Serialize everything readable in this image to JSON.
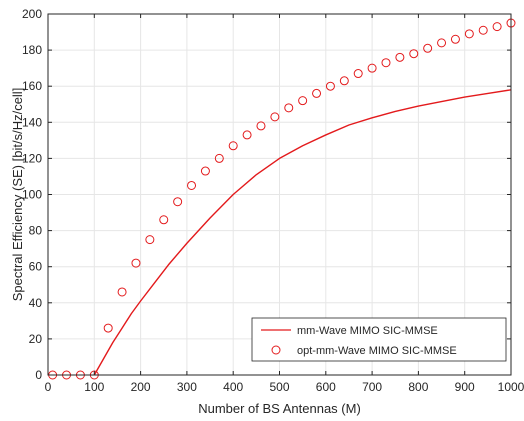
{
  "chart_data": {
    "type": "line",
    "xlabel": "Number of BS Antennas (M)",
    "ylabel": "Spectral Efficiency (SE) [bit/s/Hz/cell]",
    "xlim": [
      0,
      1000
    ],
    "ylim": [
      0,
      200
    ],
    "xticks": [
      0,
      100,
      200,
      300,
      400,
      500,
      600,
      700,
      800,
      900,
      1000
    ],
    "yticks": [
      0,
      20,
      40,
      60,
      80,
      100,
      120,
      140,
      160,
      180,
      200
    ],
    "grid": true,
    "legend_position": "bottom-right",
    "series": [
      {
        "name": "mm-Wave MIMO SIC-MMSE",
        "style": "line",
        "color": "#e31a1c",
        "x": [
          100,
          120,
          140,
          160,
          180,
          200,
          230,
          260,
          300,
          350,
          400,
          450,
          500,
          550,
          600,
          650,
          700,
          750,
          800,
          850,
          900,
          950,
          1000
        ],
        "y": [
          0,
          9,
          18,
          26,
          34,
          41,
          51,
          61,
          73,
          87,
          100,
          111,
          120,
          127,
          133,
          138.5,
          142.5,
          146,
          149,
          151.5,
          154,
          156,
          158
        ]
      },
      {
        "name": "opt-mm-Wave MIMO SIC-MMSE",
        "style": "markers",
        "marker": "circle",
        "color": "#e31a1c",
        "x": [
          10,
          40,
          70,
          100,
          130,
          160,
          190,
          220,
          250,
          280,
          310,
          340,
          370,
          400,
          430,
          460,
          490,
          520,
          550,
          580,
          610,
          640,
          670,
          700,
          730,
          760,
          790,
          820,
          850,
          880,
          910,
          940,
          970,
          1000
        ],
        "y": [
          0,
          0,
          0,
          0,
          26,
          46,
          62,
          75,
          86,
          96,
          105,
          113,
          120,
          127,
          133,
          138,
          143,
          148,
          152,
          156,
          160,
          163,
          167,
          170,
          173,
          176,
          178,
          181,
          184,
          186,
          189,
          191,
          193,
          195
        ]
      }
    ]
  }
}
